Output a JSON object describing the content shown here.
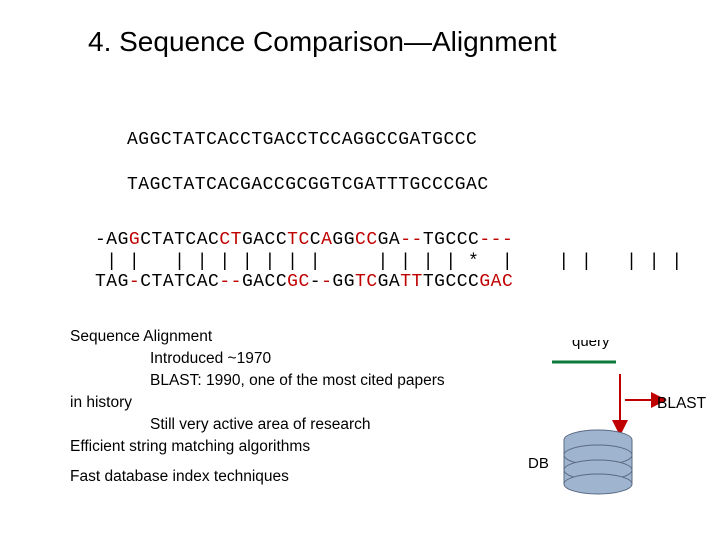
{
  "title": "4. Sequence Comparison—Alignment",
  "sequences": {
    "seq1": "AGGCTATCACCTGACCTCCAGGCCGATGCCC",
    "seq2": "TAGCTATCACGACCGCGGTCGATTTGCCCGAC"
  },
  "alignment": {
    "row1_plain1": "-AG",
    "row1_red1": "G",
    "row1_plain2": "CTATCAC",
    "row1_red2": "CT",
    "row1_plain3": "GACC",
    "row1_red3": "TC",
    "row1_plain4": "C",
    "row1_red4": "A",
    "row1_plain5": "GG",
    "row1_red5": "CC",
    "row1_plain6": "GA",
    "row1_red6": "--",
    "row1_plain7": "TGCCC",
    "row1_red7": "---",
    "ticks": " | |   | | | | | | |     | | | | *  |    | |   | | |       | | | | |",
    "row2_plain1": "TAG",
    "row2_red1": "-",
    "row2_plain2": "CTATCAC",
    "row2_red2": "--",
    "row2_plain3": "GACC",
    "row2_red3": "GC",
    "row2_plain4": "-",
    "row2_red4": "-",
    "row2_plain5": "GG",
    "row2_red5": "TC",
    "row2_plain6": "GA",
    "row2_red6": "TT",
    "row2_plain7": "TGCCC",
    "row2_red7": "GAC"
  },
  "body": {
    "l1": "Sequence Alignment",
    "l2": "Introduced ~1970",
    "l3": "BLAST: 1990, one of the most cited papers",
    "l4": "in history",
    "l5": "Still very active area of research",
    "l6": "Efficient string matching algorithms",
    "l7": "Fast database index techniques"
  },
  "diagram": {
    "query_label": "query",
    "db_label": "DB",
    "blast_label": "BLAST",
    "colors": {
      "query_line": "#0b7a3a",
      "arrow": "#c00000",
      "db_fill": "#9fb4cf",
      "db_stroke": "#5a6b82",
      "red": "#c00000",
      "black": "#000000"
    }
  }
}
